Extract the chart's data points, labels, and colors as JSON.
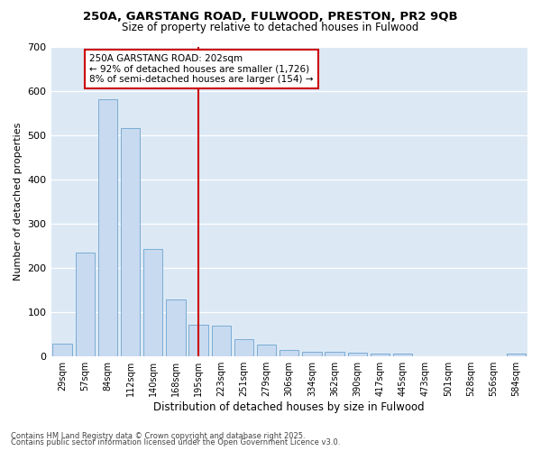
{
  "title1": "250A, GARSTANG ROAD, FULWOOD, PRESTON, PR2 9QB",
  "title2": "Size of property relative to detached houses in Fulwood",
  "xlabel": "Distribution of detached houses by size in Fulwood",
  "ylabel": "Number of detached properties",
  "bar_color": "#c8daf0",
  "bar_edge_color": "#7bacd4",
  "fig_bg_color": "#ffffff",
  "plot_bg_color": "#dce9f5",
  "grid_color": "#ffffff",
  "categories": [
    "29sqm",
    "57sqm",
    "84sqm",
    "112sqm",
    "140sqm",
    "168sqm",
    "195sqm",
    "223sqm",
    "251sqm",
    "279sqm",
    "306sqm",
    "334sqm",
    "362sqm",
    "390sqm",
    "417sqm",
    "445sqm",
    "473sqm",
    "501sqm",
    "528sqm",
    "556sqm",
    "584sqm"
  ],
  "values": [
    27,
    234,
    580,
    516,
    242,
    128,
    70,
    68,
    38,
    25,
    14,
    10,
    10,
    7,
    5,
    5,
    0,
    0,
    0,
    0,
    5
  ],
  "vline_x": 6,
  "vline_color": "#cc0000",
  "annotation_title": "250A GARSTANG ROAD: 202sqm",
  "annotation_line1": "← 92% of detached houses are smaller (1,726)",
  "annotation_line2": "8% of semi-detached houses are larger (154) →",
  "ylim": [
    0,
    700
  ],
  "yticks": [
    0,
    100,
    200,
    300,
    400,
    500,
    600,
    700
  ],
  "footer1": "Contains HM Land Registry data © Crown copyright and database right 2025.",
  "footer2": "Contains public sector information licensed under the Open Government Licence v3.0."
}
